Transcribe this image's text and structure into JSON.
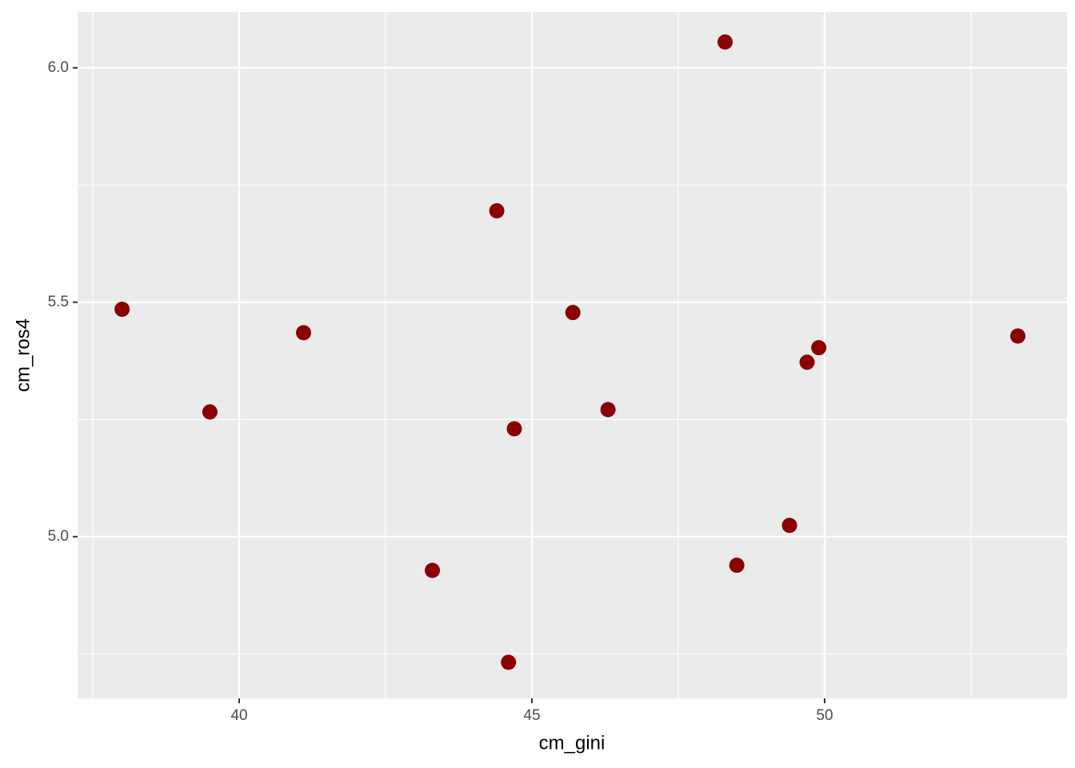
{
  "chart_data": {
    "type": "scatter",
    "x_label": "cm_gini",
    "y_label": "cm_ros4",
    "x": [
      38.0,
      39.5,
      41.1,
      43.3,
      44.4,
      44.6,
      44.7,
      45.7,
      46.3,
      48.3,
      48.5,
      49.4,
      49.7,
      49.9,
      53.3
    ],
    "values": [
      5.485,
      5.266,
      5.435,
      4.928,
      5.695,
      4.732,
      5.23,
      5.478,
      5.271,
      6.055,
      4.939,
      5.024,
      5.372,
      5.403,
      5.428
    ],
    "color": "#8b0000",
    "xlim": [
      37.24,
      54.14
    ],
    "ylim": [
      4.655,
      6.119
    ],
    "xticks": [
      40,
      45,
      50
    ],
    "yticks": [
      {
        "value": 5,
        "label": "5.0"
      },
      {
        "value": 5.5,
        "label": "5.5"
      },
      {
        "value": 6,
        "label": "6.0"
      }
    ],
    "xminorticks": [
      37.5,
      42.5,
      47.5,
      52.5
    ],
    "yminorticks": [
      4.75,
      5.25,
      5.75
    ],
    "grid": true
  }
}
